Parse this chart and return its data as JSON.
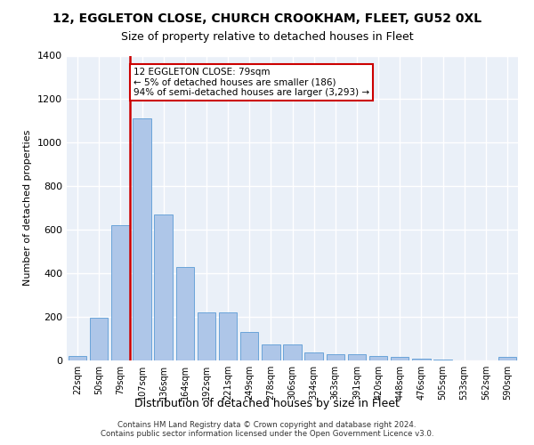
{
  "title_line1": "12, EGGLETON CLOSE, CHURCH CROOKHAM, FLEET, GU52 0XL",
  "title_line2": "Size of property relative to detached houses in Fleet",
  "xlabel": "Distribution of detached houses by size in Fleet",
  "ylabel": "Number of detached properties",
  "categories": [
    "22sqm",
    "50sqm",
    "79sqm",
    "107sqm",
    "136sqm",
    "164sqm",
    "192sqm",
    "221sqm",
    "249sqm",
    "278sqm",
    "306sqm",
    "334sqm",
    "363sqm",
    "391sqm",
    "420sqm",
    "448sqm",
    "476sqm",
    "505sqm",
    "533sqm",
    "562sqm",
    "590sqm"
  ],
  "values": [
    20,
    195,
    620,
    1110,
    670,
    430,
    220,
    220,
    130,
    75,
    75,
    35,
    30,
    30,
    20,
    15,
    10,
    5,
    0,
    0,
    15
  ],
  "bar_color": "#aec6e8",
  "bar_edge_color": "#5b9bd5",
  "marker_line_color": "#cc0000",
  "annotation_text": "12 EGGLETON CLOSE: 79sqm\n← 5% of detached houses are smaller (186)\n94% of semi-detached houses are larger (3,293) →",
  "annotation_box_color": "#ffffff",
  "annotation_box_edge": "#cc0000",
  "background_color": "#eaf0f8",
  "grid_color": "#ffffff",
  "footer_line1": "Contains HM Land Registry data © Crown copyright and database right 2024.",
  "footer_line2": "Contains public sector information licensed under the Open Government Licence v3.0.",
  "ylim": [
    0,
    1400
  ],
  "yticks": [
    0,
    200,
    400,
    600,
    800,
    1000,
    1200,
    1400
  ],
  "marker_bar_index": 2
}
